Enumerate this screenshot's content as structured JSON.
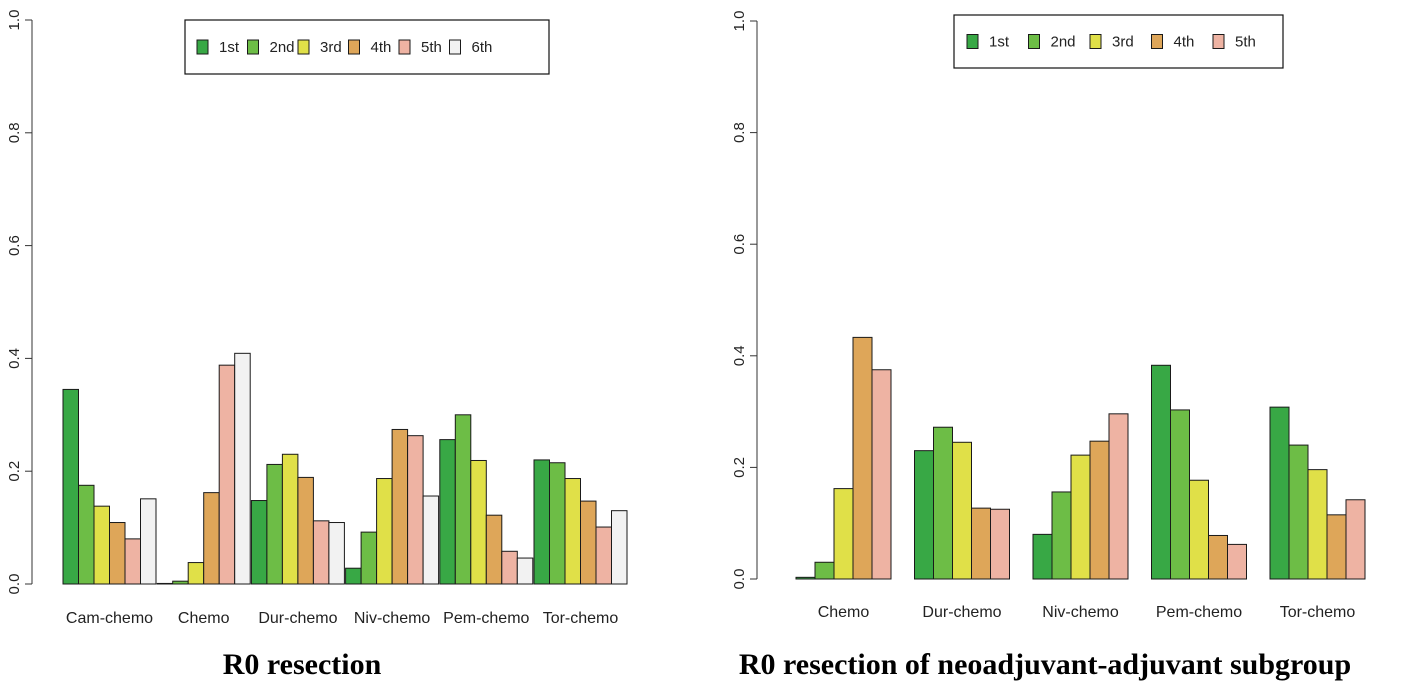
{
  "colors": {
    "1st": "#38a845",
    "2nd": "#6dbd46",
    "3rd": "#e0e048",
    "4th": "#dea659",
    "5th": "#eeb3a3",
    "6th": "#f2f2f2"
  },
  "chart_data": [
    {
      "type": "bar",
      "title": "R0 resection",
      "xlabel": "",
      "ylabel": "",
      "ylim": [
        0,
        1
      ],
      "yticks": [
        "0.0",
        "0.2",
        "0.4",
        "0.6",
        "0.8",
        "1.0"
      ],
      "grid": false,
      "legend_position": "top",
      "categories": [
        "Cam-chemo",
        "Chemo",
        "Dur-chemo",
        "Niv-chemo",
        "Pem-chemo",
        "Tor-chemo"
      ],
      "series": [
        {
          "name": "1st",
          "values": [
            0.345,
            0.001,
            0.148,
            0.028,
            0.256,
            0.22
          ]
        },
        {
          "name": "2nd",
          "values": [
            0.175,
            0.005,
            0.212,
            0.092,
            0.3,
            0.215
          ]
        },
        {
          "name": "3rd",
          "values": [
            0.138,
            0.038,
            0.23,
            0.187,
            0.219,
            0.187
          ]
        },
        {
          "name": "4th",
          "values": [
            0.109,
            0.162,
            0.189,
            0.274,
            0.122,
            0.147
          ]
        },
        {
          "name": "5th",
          "values": [
            0.08,
            0.388,
            0.112,
            0.263,
            0.058,
            0.101
          ]
        },
        {
          "name": "6th",
          "values": [
            0.151,
            0.409,
            0.109,
            0.156,
            0.046,
            0.13
          ]
        }
      ]
    },
    {
      "type": "bar",
      "title": "R0 resection of neoadjuvant-adjuvant subgroup",
      "xlabel": "",
      "ylabel": "",
      "ylim": [
        0,
        1
      ],
      "yticks": [
        "0.0",
        "0.2",
        "0.4",
        "0.6",
        "0.8",
        "1.0"
      ],
      "grid": false,
      "legend_position": "top",
      "categories": [
        "Chemo",
        "Dur-chemo",
        "Niv-chemo",
        "Pem-chemo",
        "Tor-chemo"
      ],
      "series": [
        {
          "name": "1st",
          "values": [
            0.003,
            0.23,
            0.08,
            0.383,
            0.308
          ]
        },
        {
          "name": "2nd",
          "values": [
            0.03,
            0.272,
            0.156,
            0.303,
            0.24
          ]
        },
        {
          "name": "3rd",
          "values": [
            0.162,
            0.245,
            0.222,
            0.177,
            0.196
          ]
        },
        {
          "name": "4th",
          "values": [
            0.433,
            0.127,
            0.247,
            0.078,
            0.115
          ]
        },
        {
          "name": "5th",
          "values": [
            0.375,
            0.125,
            0.296,
            0.062,
            0.142
          ]
        }
      ]
    }
  ]
}
